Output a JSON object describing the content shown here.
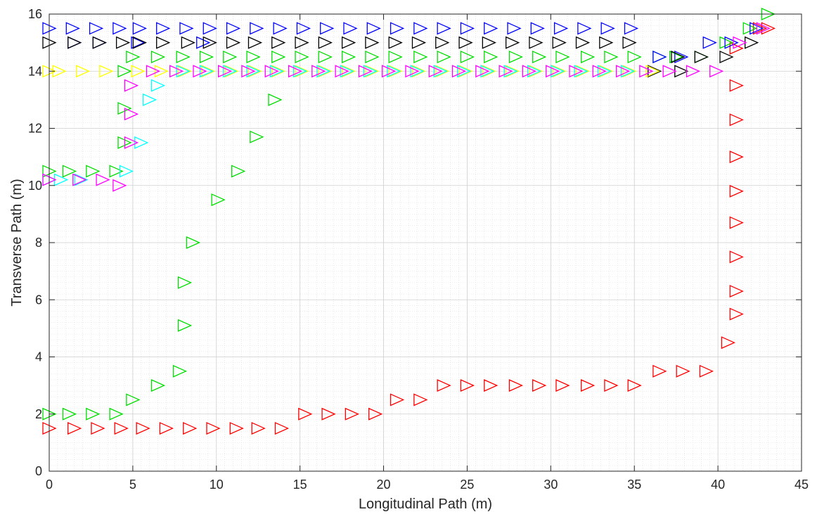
{
  "chart_data": {
    "type": "scatter",
    "title": "",
    "xlabel": "Longitudinal Path (m)",
    "ylabel": "Transverse Path (m)",
    "xlim": [
      0,
      45
    ],
    "ylim": [
      0,
      16
    ],
    "xticks": [
      0,
      5,
      10,
      15,
      20,
      25,
      30,
      35,
      40,
      45
    ],
    "yticks": [
      0,
      2,
      4,
      6,
      8,
      10,
      12,
      14,
      16
    ],
    "grid": true,
    "minor_grid": true,
    "marker": "right-triangle",
    "series": [
      {
        "color": "#ff0000",
        "points": [
          [
            0,
            1.5
          ],
          [
            1.5,
            1.5
          ],
          [
            2.9,
            1.5
          ],
          [
            4.3,
            1.5
          ],
          [
            5.6,
            1.5
          ],
          [
            7,
            1.5
          ],
          [
            8.4,
            1.5
          ],
          [
            9.8,
            1.5
          ],
          [
            11.2,
            1.5
          ],
          [
            12.5,
            1.5
          ],
          [
            13.9,
            1.5
          ],
          [
            15.3,
            2
          ],
          [
            16.7,
            2
          ],
          [
            18.1,
            2
          ],
          [
            19.5,
            2
          ],
          [
            20.8,
            2.5
          ],
          [
            22.2,
            2.5
          ],
          [
            23.6,
            3
          ],
          [
            25,
            3
          ],
          [
            26.4,
            3
          ],
          [
            27.9,
            3
          ],
          [
            29.3,
            3
          ],
          [
            30.7,
            3
          ],
          [
            32.2,
            3
          ],
          [
            33.6,
            3
          ],
          [
            35,
            3
          ],
          [
            36.5,
            3.5
          ],
          [
            37.9,
            3.5
          ],
          [
            39.3,
            3.5
          ],
          [
            40.6,
            4.5
          ],
          [
            41.1,
            5.5
          ],
          [
            41.1,
            6.3
          ],
          [
            41.1,
            7.5
          ],
          [
            41.1,
            8.7
          ],
          [
            41.1,
            9.8
          ],
          [
            41.1,
            11
          ],
          [
            41.1,
            12.3
          ],
          [
            41.1,
            13.5
          ],
          [
            41.1,
            14.8
          ],
          [
            42.5,
            15.5
          ],
          [
            43,
            15.5
          ]
        ]
      },
      {
        "color": "#00dd00",
        "points": [
          [
            0,
            2
          ],
          [
            1.2,
            2
          ],
          [
            2.6,
            2
          ],
          [
            4,
            2
          ],
          [
            5,
            2.5
          ],
          [
            6.5,
            3
          ],
          [
            7.8,
            3.5
          ],
          [
            8.1,
            5.1
          ],
          [
            8.1,
            6.6
          ],
          [
            8.6,
            8
          ],
          [
            10.1,
            9.5
          ],
          [
            11.3,
            10.5
          ],
          [
            12.4,
            11.7
          ],
          [
            13.5,
            13
          ],
          [
            0,
            10.5
          ],
          [
            1.2,
            10.5
          ],
          [
            2.6,
            10.5
          ],
          [
            4,
            10.5
          ],
          [
            4.5,
            11.5
          ],
          [
            4.5,
            12.7
          ],
          [
            4.5,
            14
          ],
          [
            5,
            14.5
          ],
          [
            6.5,
            14.5
          ],
          [
            8,
            14.5
          ],
          [
            9.4,
            14.5
          ],
          [
            10.8,
            14.5
          ],
          [
            12.2,
            14.5
          ],
          [
            13.7,
            14.5
          ],
          [
            15.1,
            14.5
          ],
          [
            16.5,
            14.5
          ],
          [
            17.9,
            14.5
          ],
          [
            19.3,
            14.5
          ],
          [
            20.7,
            14.5
          ],
          [
            22.2,
            14.5
          ],
          [
            23.6,
            14.5
          ],
          [
            25,
            14.5
          ],
          [
            26.4,
            14.5
          ],
          [
            27.9,
            14.5
          ],
          [
            29.3,
            14.5
          ],
          [
            30.7,
            14.5
          ],
          [
            32.2,
            14.5
          ],
          [
            33.6,
            14.5
          ],
          [
            35,
            14.5
          ],
          [
            36.5,
            14.5
          ],
          [
            37.5,
            14.5
          ],
          [
            39,
            14.5
          ],
          [
            40.5,
            15
          ],
          [
            41.9,
            15.5
          ],
          [
            43,
            16
          ]
        ]
      },
      {
        "color": "#0000ff",
        "points": [
          [
            0,
            15.5
          ],
          [
            1.4,
            15.5
          ],
          [
            2.8,
            15.5
          ],
          [
            4.2,
            15.5
          ],
          [
            5.4,
            15.5
          ],
          [
            6.8,
            15.5
          ],
          [
            8.2,
            15.5
          ],
          [
            9.6,
            15.5
          ],
          [
            11,
            15.5
          ],
          [
            12.4,
            15.5
          ],
          [
            13.8,
            15.5
          ],
          [
            15.2,
            15.5
          ],
          [
            16.6,
            15.5
          ],
          [
            18,
            15.5
          ],
          [
            19.4,
            15.5
          ],
          [
            20.8,
            15.5
          ],
          [
            22.2,
            15.5
          ],
          [
            23.6,
            15.5
          ],
          [
            25,
            15.5
          ],
          [
            26.4,
            15.5
          ],
          [
            27.8,
            15.5
          ],
          [
            29.2,
            15.5
          ],
          [
            30.6,
            15.5
          ],
          [
            32,
            15.5
          ],
          [
            33.4,
            15.5
          ],
          [
            34.8,
            15.5
          ],
          [
            1.5,
            15
          ],
          [
            3,
            15
          ],
          [
            5.3,
            15
          ],
          [
            9.2,
            15
          ],
          [
            36.5,
            14.5
          ],
          [
            37.8,
            14.5
          ],
          [
            39.5,
            15
          ],
          [
            40.8,
            15
          ],
          [
            42.3,
            15.5
          ]
        ]
      },
      {
        "color": "#000000",
        "points": [
          [
            0,
            15
          ],
          [
            1.5,
            15
          ],
          [
            3,
            15
          ],
          [
            4.4,
            15
          ],
          [
            5.4,
            15
          ],
          [
            6.8,
            15
          ],
          [
            8.3,
            15
          ],
          [
            9.6,
            15
          ],
          [
            11,
            15
          ],
          [
            12.3,
            15
          ],
          [
            13.7,
            15
          ],
          [
            15.1,
            15
          ],
          [
            16.5,
            15
          ],
          [
            17.9,
            15
          ],
          [
            19.3,
            15
          ],
          [
            20.7,
            15
          ],
          [
            22.1,
            15
          ],
          [
            23.5,
            15
          ],
          [
            24.9,
            15
          ],
          [
            26.3,
            15
          ],
          [
            27.7,
            15
          ],
          [
            29.1,
            15
          ],
          [
            30.5,
            15
          ],
          [
            31.9,
            15
          ],
          [
            33.3,
            15
          ],
          [
            34.7,
            15
          ],
          [
            36.2,
            14
          ],
          [
            37.6,
            14.5
          ],
          [
            39,
            14.5
          ],
          [
            40.5,
            14.5
          ],
          [
            42,
            15
          ],
          [
            37.8,
            14
          ]
        ]
      },
      {
        "color": "#ffff00",
        "points": [
          [
            0,
            14
          ],
          [
            0.6,
            14
          ],
          [
            2,
            14
          ],
          [
            3.4,
            14
          ],
          [
            5.3,
            14
          ],
          [
            6.7,
            14
          ],
          [
            8.1,
            14
          ],
          [
            9.5,
            14
          ],
          [
            10.9,
            14
          ],
          [
            12.3,
            14
          ],
          [
            13.7,
            14
          ],
          [
            15.1,
            14
          ],
          [
            16.5,
            14
          ],
          [
            17.9,
            14
          ],
          [
            19.3,
            14
          ],
          [
            20.7,
            14
          ],
          [
            22.1,
            14
          ],
          [
            23.5,
            14
          ],
          [
            24.9,
            14
          ],
          [
            26.3,
            14
          ],
          [
            27.7,
            14
          ],
          [
            29.1,
            14
          ],
          [
            30.5,
            14
          ],
          [
            31.9,
            14
          ],
          [
            33.3,
            14
          ],
          [
            34.7,
            14
          ],
          [
            36.1,
            14
          ]
        ]
      },
      {
        "color": "#00ffff",
        "points": [
          [
            0,
            10.2
          ],
          [
            0.7,
            10.2
          ],
          [
            1.9,
            10.2
          ],
          [
            4.6,
            10.5
          ],
          [
            5.5,
            11.5
          ],
          [
            6,
            13
          ],
          [
            6.5,
            13.5
          ],
          [
            8,
            14
          ],
          [
            9.4,
            14
          ],
          [
            10.8,
            14
          ],
          [
            12.2,
            14
          ],
          [
            13.6,
            14
          ],
          [
            15,
            14
          ],
          [
            16.4,
            14
          ],
          [
            17.8,
            14
          ],
          [
            19.2,
            14
          ],
          [
            20.6,
            14
          ],
          [
            22,
            14
          ],
          [
            23.4,
            14
          ],
          [
            24.8,
            14
          ],
          [
            26.2,
            14
          ],
          [
            27.6,
            14
          ],
          [
            29,
            14
          ],
          [
            30.4,
            14
          ],
          [
            31.8,
            14
          ],
          [
            33.2,
            14
          ],
          [
            34.6,
            14
          ]
        ]
      },
      {
        "color": "#ff00ff",
        "points": [
          [
            0,
            10.2
          ],
          [
            1.8,
            10.2
          ],
          [
            3.2,
            10.2
          ],
          [
            4.2,
            10
          ],
          [
            4.9,
            11.5
          ],
          [
            4.9,
            12.5
          ],
          [
            4.9,
            13.5
          ],
          [
            6.2,
            14
          ],
          [
            7.6,
            14
          ],
          [
            9,
            14
          ],
          [
            10.5,
            14
          ],
          [
            11.9,
            14
          ],
          [
            13.3,
            14
          ],
          [
            14.7,
            14
          ],
          [
            16.1,
            14
          ],
          [
            17.5,
            14
          ],
          [
            18.9,
            14
          ],
          [
            20.3,
            14
          ],
          [
            21.7,
            14
          ],
          [
            23.1,
            14
          ],
          [
            24.5,
            14
          ],
          [
            25.9,
            14
          ],
          [
            27.3,
            14
          ],
          [
            28.7,
            14
          ],
          [
            30.1,
            14
          ],
          [
            31.5,
            14
          ],
          [
            32.9,
            14
          ],
          [
            34.3,
            14
          ],
          [
            35.7,
            14
          ],
          [
            37.1,
            14
          ],
          [
            38.5,
            14
          ],
          [
            39.9,
            14
          ],
          [
            41.3,
            15
          ],
          [
            42.7,
            15.5
          ]
        ]
      }
    ]
  }
}
